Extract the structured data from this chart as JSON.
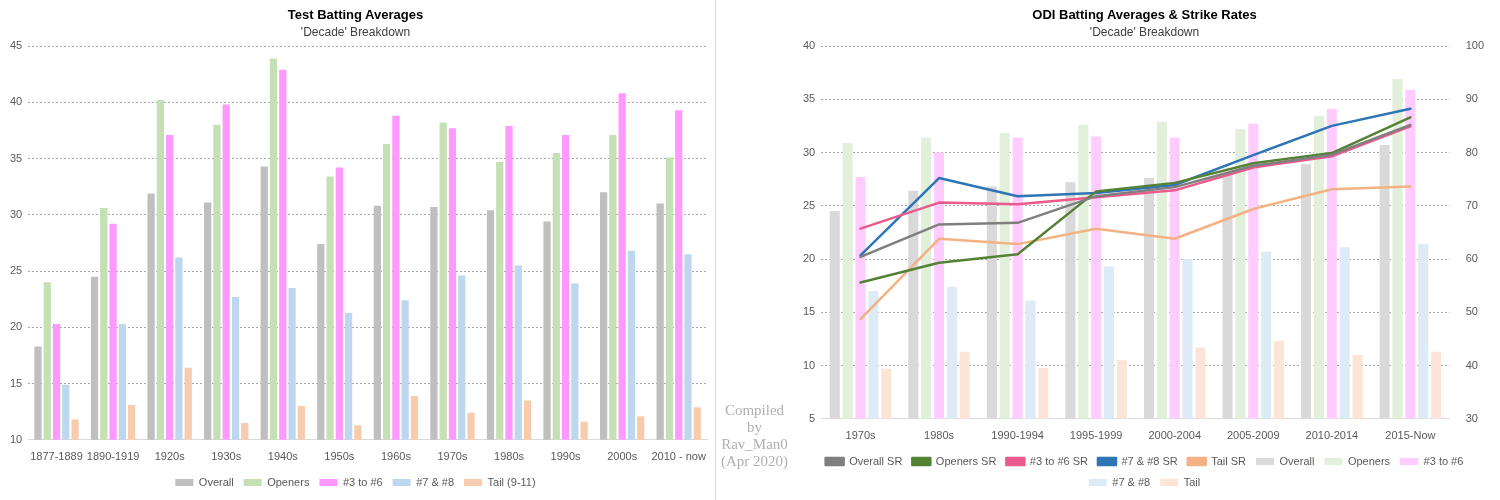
{
  "chart_data": [
    {
      "type": "bar",
      "title": "Test Batting Averages",
      "subtitle": "'Decade' Breakdown",
      "categories": [
        "1877-1889",
        "1890-1919",
        "1920s",
        "1930s",
        "1940s",
        "1950s",
        "1960s",
        "1970s",
        "1980s",
        "1990s",
        "2000s",
        "2010 - now"
      ],
      "series": [
        {
          "name": "Overall",
          "color": "#bfbfbf",
          "values": [
            18.3,
            24.5,
            31.9,
            31.1,
            34.3,
            27.4,
            30.8,
            30.7,
            30.4,
            29.4,
            32.0,
            31.0
          ]
        },
        {
          "name": "Openers",
          "color": "#c5e0b4",
          "values": [
            24.0,
            30.6,
            40.2,
            38.0,
            43.9,
            33.4,
            36.3,
            38.2,
            34.7,
            35.5,
            37.1,
            35.1
          ]
        },
        {
          "name": "#3 to #6",
          "color": "#ff99ff",
          "values": [
            20.3,
            29.2,
            37.1,
            39.8,
            42.9,
            34.2,
            38.8,
            37.7,
            37.9,
            37.1,
            40.8,
            39.3
          ]
        },
        {
          "name": "#7 & #8",
          "color": "#bdd7ee",
          "values": [
            14.9,
            20.3,
            26.2,
            22.7,
            23.5,
            21.3,
            22.4,
            24.6,
            25.5,
            23.9,
            26.8,
            26.5
          ]
        },
        {
          "name": "Tail (9-11)",
          "color": "#f8cbad",
          "values": [
            11.8,
            13.1,
            16.4,
            11.5,
            13.0,
            11.3,
            13.9,
            12.4,
            13.5,
            11.6,
            12.1,
            12.9
          ]
        }
      ],
      "ylim": [
        10,
        45
      ],
      "yticks": [
        10,
        15,
        20,
        25,
        30,
        35,
        40,
        45
      ],
      "grid": "y",
      "legend": "bottom"
    },
    {
      "type": "bar",
      "title": "ODI Batting Averages & Strike Rates",
      "subtitle": "'Decade' Breakdown",
      "annotations": [
        "Compiled by Rav_Man0 (Apr 2020)"
      ],
      "categories": [
        "1970s",
        "1980s",
        "1990-1994",
        "1995-1999",
        "2000-2004",
        "2005-2009",
        "2010-2014",
        "2015-Now"
      ],
      "series": [
        {
          "name": "Overall",
          "color": "#d9d9d9",
          "values": [
            24.5,
            26.4,
            26.8,
            27.2,
            27.6,
            27.9,
            28.9,
            30.7
          ]
        },
        {
          "name": "Openers",
          "color": "#e2efda",
          "values": [
            30.9,
            31.4,
            31.8,
            32.6,
            32.9,
            32.2,
            33.4,
            36.9
          ]
        },
        {
          "name": "#3 to #6",
          "color": "#ffccff",
          "values": [
            27.7,
            30.0,
            31.4,
            31.5,
            31.4,
            32.7,
            34.1,
            35.9
          ]
        },
        {
          "name": "#7 & #8",
          "color": "#ddebf7",
          "values": [
            17.0,
            17.4,
            16.1,
            19.3,
            20.0,
            20.7,
            21.1,
            21.4
          ]
        },
        {
          "name": "Tail",
          "color": "#fce4d6",
          "values": [
            9.7,
            11.3,
            9.8,
            10.5,
            11.7,
            12.3,
            11.0,
            11.3
          ]
        },
        {
          "name": "Overall SR",
          "type": "line",
          "axis": "y2",
          "color": "#7f7f7f",
          "values": [
            60.4,
            66.5,
            66.8,
            71.8,
            73.5,
            77.5,
            79.6,
            85.2
          ]
        },
        {
          "name": "Openers SR",
          "type": "line",
          "axis": "y2",
          "color": "#548235",
          "values": [
            55.6,
            59.3,
            60.9,
            72.7,
            74.3,
            78.0,
            79.9,
            86.6
          ]
        },
        {
          "name": "#3 to #6 SR",
          "type": "line",
          "axis": "y2",
          "color": "#ea5a8c",
          "values": [
            65.7,
            70.6,
            70.3,
            71.6,
            72.9,
            77.2,
            79.3,
            84.9
          ]
        },
        {
          "name": "#7 & #8 SR",
          "type": "line",
          "axis": "y2",
          "color": "#2e75b6",
          "values": [
            60.7,
            75.2,
            71.8,
            72.4,
            73.9,
            79.5,
            85.0,
            88.2
          ]
        },
        {
          "name": "Tail SR",
          "type": "line",
          "axis": "y2",
          "color": "#f4b183",
          "values": [
            48.7,
            63.8,
            62.8,
            65.7,
            63.8,
            69.4,
            73.1,
            73.6
          ]
        }
      ],
      "ylim": [
        5,
        40
      ],
      "yticks": [
        5,
        10,
        15,
        20,
        25,
        30,
        35,
        40
      ],
      "y2lim": [
        30,
        100
      ],
      "y2ticks": [
        30,
        40,
        50,
        60,
        70,
        80,
        90,
        100
      ],
      "grid": "y",
      "legend": "bottom",
      "marker": "none"
    }
  ]
}
